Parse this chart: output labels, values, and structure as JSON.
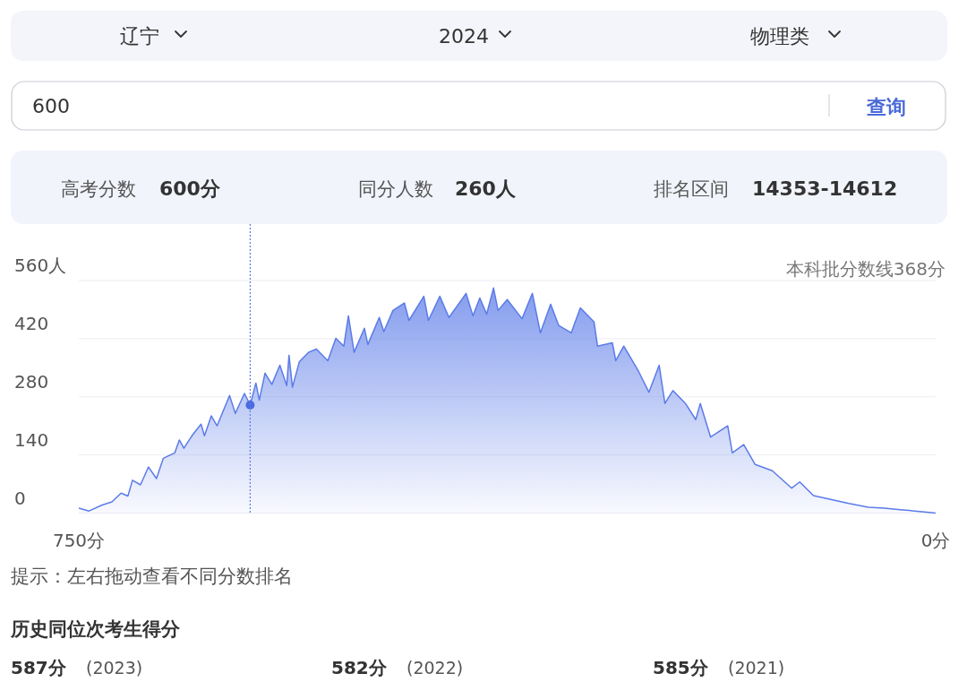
{
  "chart_data": {
    "type": "area",
    "xlim": [
      750,
      0
    ],
    "ylim": [
      0,
      560
    ],
    "xticks": [
      {
        "value": 750,
        "label": "750分"
      },
      {
        "value": 0,
        "label": "0分"
      }
    ],
    "yticks": [
      0,
      140,
      280,
      420,
      {
        "value": 560,
        "label": "560人"
      }
    ],
    "grid": "y",
    "ref_lines": [
      {
        "axis": "x",
        "value": 600,
        "color": "#5b7be8",
        "line_style": "dotted"
      }
    ],
    "annotations": [
      "辽宁",
      "2024",
      "物理类",
      "600",
      "查询",
      "高考分数",
      "600分",
      "同分人数",
      "260人",
      "排名区间",
      "14353-14612",
      "本科批分数线368分",
      "提示：左右拖动查看不同分数排名",
      "历史同位次考生得分",
      "587分",
      "(2023)",
      "582分",
      "(2022)",
      "585分",
      "(2021)"
    ],
    "series": [
      {
        "color": "#5b7be8",
        "x": [
          750,
          741,
          730,
          721,
          713,
          707,
          703,
          696,
          689,
          682,
          676,
          666,
          662,
          658,
          651,
          643,
          640,
          634,
          629,
          618,
          613,
          605,
          600,
          595,
          592,
          587,
          581,
          574,
          568,
          566,
          563,
          557,
          549,
          542,
          532,
          525,
          518,
          514,
          509,
          500,
          497,
          487,
          483,
          475,
          465,
          461,
          448,
          444,
          434,
          426,
          411,
          405,
          399,
          393,
          387,
          383,
          375,
          362,
          353,
          346,
          337,
          330,
          319,
          311,
          299,
          296,
          283,
          280,
          273,
          260,
          251,
          242,
          237,
          230,
          219,
          210,
          206,
          197,
          182,
          178,
          168,
          158,
          143,
          126,
          119,
          107,
          92,
          76,
          59,
          45,
          31,
          14,
          0
        ],
        "values": [
          12,
          5,
          19,
          27,
          48,
          41,
          79,
          68,
          111,
          83,
          132,
          145,
          176,
          156,
          186,
          214,
          186,
          234,
          210,
          283,
          240,
          288,
          260,
          313,
          272,
          337,
          310,
          356,
          307,
          380,
          303,
          364,
          387,
          395,
          367,
          421,
          402,
          475,
          387,
          445,
          406,
          471,
          437,
          488,
          506,
          464,
          522,
          464,
          522,
          471,
          529,
          475,
          518,
          479,
          542,
          488,
          514,
          468,
          529,
          434,
          503,
          452,
          434,
          494,
          460,
          402,
          410,
          367,
          402,
          341,
          291,
          356,
          264,
          295,
          264,
          225,
          264,
          183,
          210,
          145,
          165,
          117,
          102,
          60,
          75,
          42,
          33,
          23,
          14,
          12,
          8,
          4,
          0
        ]
      },
      {
        "type": "scatter",
        "marker": "circle",
        "color": "#4a6be0",
        "x": [
          600
        ],
        "values": [
          260
        ]
      }
    ]
  }
}
